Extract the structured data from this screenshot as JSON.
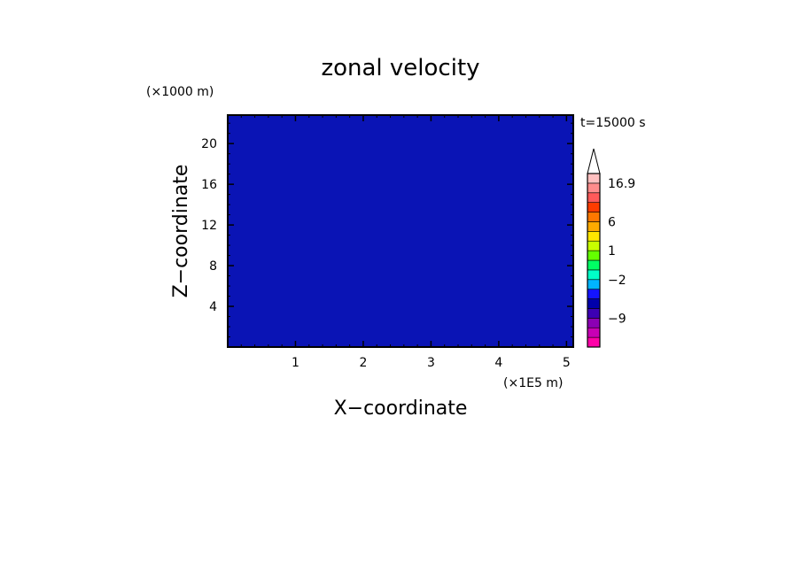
{
  "chart_data": {
    "type": "heatmap",
    "title": "zonal velocity",
    "xlabel": "X−coordinate",
    "ylabel": "Z−coordinate",
    "x_units": "(×1E5 m)",
    "y_units": "(×1000 m)",
    "time_label": "t=15000 s",
    "xlim": [
      0,
      5.1
    ],
    "ylim": [
      0,
      22.8
    ],
    "x_ticks": [
      {
        "value": 1,
        "label": "1"
      },
      {
        "value": 2,
        "label": "2"
      },
      {
        "value": 3,
        "label": "3"
      },
      {
        "value": 4,
        "label": "4"
      },
      {
        "value": 5,
        "label": "5"
      }
    ],
    "y_ticks": [
      {
        "value": 4,
        "label": "4"
      },
      {
        "value": 8,
        "label": "8"
      },
      {
        "value": 12,
        "label": "12"
      },
      {
        "value": 16,
        "label": "16"
      },
      {
        "value": 20,
        "label": "20"
      }
    ],
    "colorbar": {
      "levels": [
        -12,
        -10.5,
        -9,
        -7.5,
        -6,
        -4,
        -2,
        -1,
        0,
        1,
        2,
        4,
        6,
        8,
        10,
        13,
        16.9
      ],
      "colors": [
        "#ff00a8",
        "#c800b4",
        "#8c00b4",
        "#3c00b4",
        "#0000aa",
        "#1414ff",
        "#00b4ff",
        "#00ffc8",
        "#00ff64",
        "#64ff00",
        "#c8ff00",
        "#ffe600",
        "#ffaa00",
        "#ff7800",
        "#ff3c00",
        "#ff5a5a",
        "#ff8c8c",
        "#ffc0c0"
      ],
      "labels": [
        {
          "value": 16.9,
          "label": "16.9"
        },
        {
          "value": 6,
          "label": "6"
        },
        {
          "value": 1,
          "label": "1"
        },
        {
          "value": -2,
          "label": "−2"
        },
        {
          "value": -9,
          "label": "−9"
        }
      ]
    },
    "field_palette": {
      "strong_negative": "#0a14b4",
      "negative": "#1e50ff",
      "weak_negative": "#00d2ff",
      "near_zero": "#00ff78",
      "weak_positive": "#b4ff00",
      "positive": "#ffff00",
      "moderate_positive": "#ffaa14",
      "strong_positive": "#ff5a00"
    }
  }
}
